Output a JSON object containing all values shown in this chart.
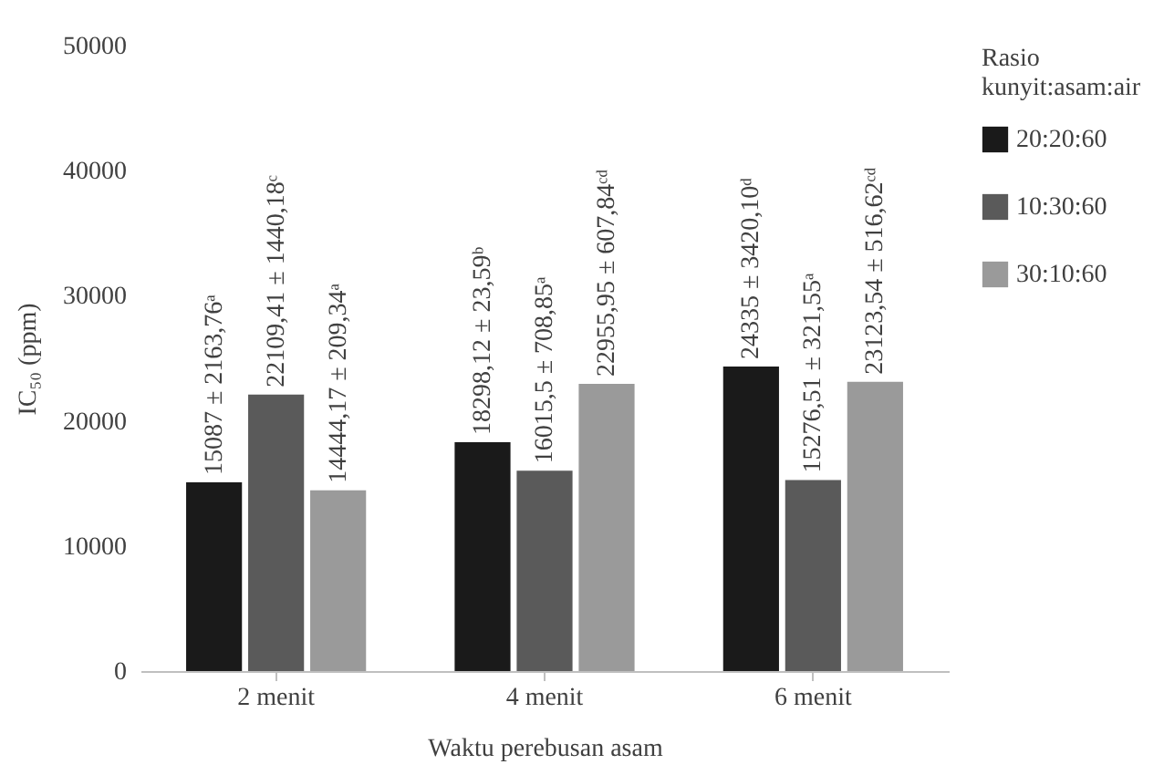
{
  "chart_data": {
    "type": "bar",
    "xlabel": "Waktu perebusan asam",
    "ylabel": "IC₅₀ (ppm)",
    "legend_title": "Rasio kunyit:asam:air",
    "legend": "right",
    "categories": [
      "2 menit",
      "4 menit",
      "6 menit"
    ],
    "series": [
      {
        "name": "20:20:60",
        "color": "#1a1a1a",
        "values": [
          15087,
          18298.12,
          24335
        ],
        "value_labels": [
          "15087 ± 2163,76ᵃ",
          "18298,12 ± 23,59ᵇ",
          "24335 ± 3420,10ᵈ"
        ]
      },
      {
        "name": "10:30:60",
        "color": "#5a5a5a",
        "values": [
          22109.41,
          16015.5,
          15276.51
        ],
        "value_labels": [
          "22109,41 ± 1440,18ᶜ",
          "16015,5 ± 708,85ᵃ",
          "15276,51 ± 321,55ᵃ"
        ]
      },
      {
        "name": "30:10:60",
        "color": "#9a9a9a",
        "values": [
          14444.17,
          22955.95,
          23123.54
        ],
        "value_labels": [
          "14444,17 ± 209,34ᵃ",
          "22955,95 ± 607,84ᶜᵈ",
          "23123,54 ± 516,62ᶜᵈ"
        ]
      }
    ],
    "ylim": [
      0,
      50000
    ],
    "yticks": [
      0,
      10000,
      20000,
      30000,
      40000,
      50000
    ],
    "grid": false
  }
}
